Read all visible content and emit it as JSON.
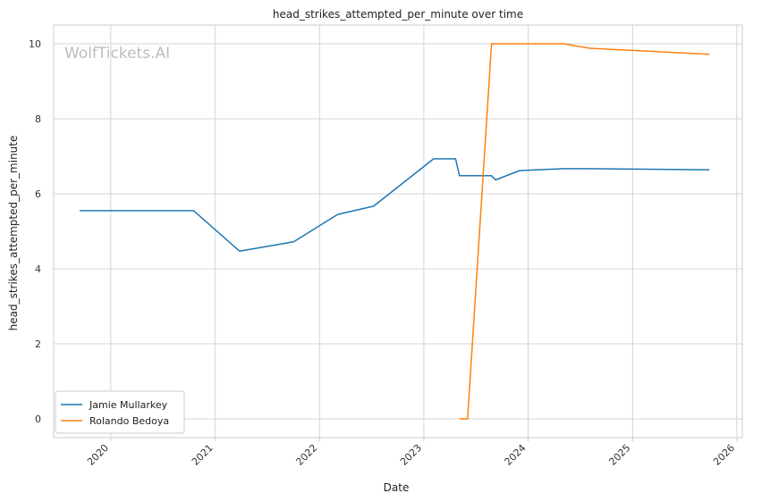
{
  "chart_data": {
    "type": "line",
    "title": "head_strikes_attempted_per_minute over time",
    "xlabel": "Date",
    "ylabel": "head_strikes_attempted_per_minute",
    "watermark": "WolfTickets.AI",
    "x_ticks": [
      "2020",
      "2021",
      "2022",
      "2023",
      "2024",
      "2025",
      "2026"
    ],
    "y_ticks": [
      "0",
      "2",
      "4",
      "6",
      "8",
      "10"
    ],
    "xlim": [
      "2019-06-15",
      "2026-01-20"
    ],
    "ylim": [
      -0.5,
      10.5
    ],
    "grid": true,
    "legend_position": "bottom-left",
    "series": [
      {
        "name": "Jamie Mullarkey",
        "color": "#1f77b4",
        "points": [
          [
            "2019-09-14",
            5.55
          ],
          [
            "2020-10-17",
            5.55
          ],
          [
            "2021-03-27",
            4.47
          ],
          [
            "2021-10-02",
            4.72
          ],
          [
            "2022-03-05",
            5.45
          ],
          [
            "2022-07-09",
            5.67
          ],
          [
            "2023-02-04",
            6.93
          ],
          [
            "2023-04-22",
            6.93
          ],
          [
            "2023-05-06",
            6.48
          ],
          [
            "2023-08-26",
            6.48
          ],
          [
            "2023-09-09",
            6.37
          ],
          [
            "2023-12-02",
            6.62
          ],
          [
            "2024-05-04",
            6.67
          ],
          [
            "2024-08-03",
            6.67
          ],
          [
            "2025-09-27",
            6.64
          ]
        ]
      },
      {
        "name": "Rolando Bedoya",
        "color": "#ff7f0e",
        "points": [
          [
            "2023-05-06",
            0.0
          ],
          [
            "2023-06-03",
            0.0
          ],
          [
            "2023-08-26",
            10.0
          ],
          [
            "2024-05-04",
            10.0
          ],
          [
            "2024-08-03",
            9.88
          ],
          [
            "2025-09-27",
            9.72
          ]
        ]
      }
    ]
  }
}
